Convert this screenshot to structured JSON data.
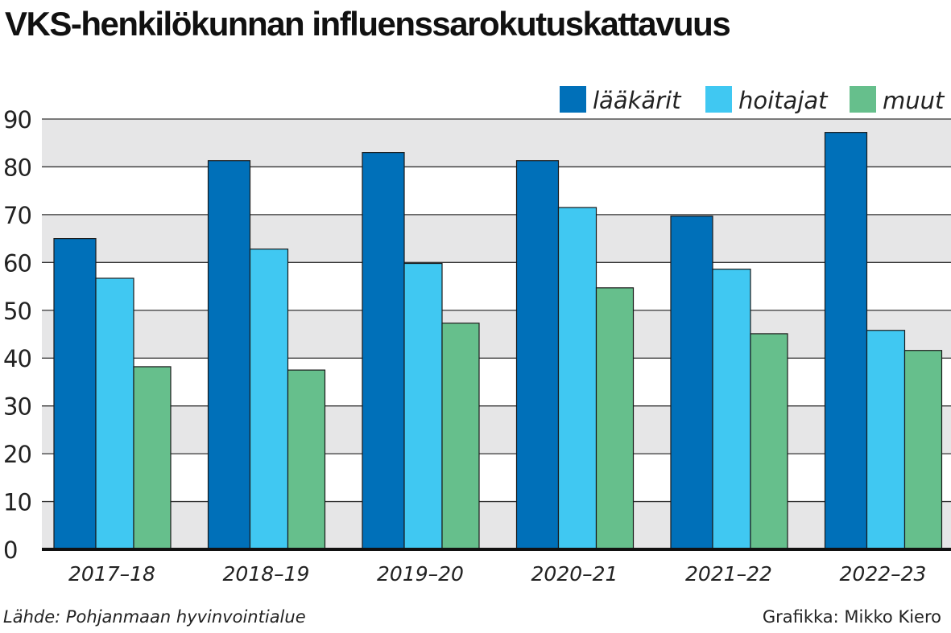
{
  "title": "VKS-henkilökunnan influenssarokutuskattavuus",
  "source": "Lähde: Pohjanmaan hyvinvointialue",
  "credit": "Grafikka: Mikko Kiero",
  "chart_data": {
    "type": "bar",
    "title": "VKS-henkilökunnan influenssarokutuskattavuus",
    "xlabel": "",
    "ylabel": "",
    "ylim": [
      0,
      90
    ],
    "yticks": [
      0,
      10,
      20,
      30,
      40,
      50,
      60,
      70,
      80,
      90
    ],
    "grid": true,
    "legend": "top-right",
    "categories": [
      "2017–18",
      "2018–19",
      "2019–20",
      "2020–21",
      "2021–22",
      "2022–23"
    ],
    "series": [
      {
        "name": "lääkärit",
        "color": "#0070b9",
        "values": [
          65.0,
          81.3,
          83.0,
          81.3,
          69.7,
          87.2
        ]
      },
      {
        "name": "hoitajat",
        "color": "#40c8f2",
        "values": [
          56.7,
          62.8,
          59.8,
          71.5,
          58.6,
          45.8
        ]
      },
      {
        "name": "muut",
        "color": "#66bf8c",
        "values": [
          38.2,
          37.5,
          47.3,
          54.7,
          45.1,
          41.6
        ]
      }
    ]
  }
}
